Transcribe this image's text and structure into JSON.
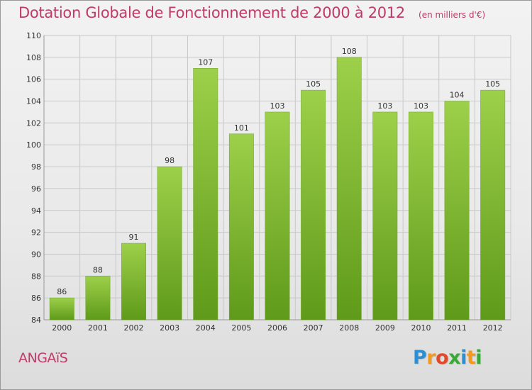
{
  "title": "Dotation Globale de Fonctionnement de 2000 à 2012",
  "subtitle": "(en milliers d'€)",
  "commune": "ANGAïS",
  "logo": {
    "letters": [
      {
        "ch": "P",
        "color": "#2b8fd6"
      },
      {
        "ch": "r",
        "color": "#f39a1e"
      },
      {
        "ch": "o",
        "color": "#e04a2a"
      },
      {
        "ch": "x",
        "color": "#39a935"
      },
      {
        "ch": "i",
        "color": "#2b8fd6"
      },
      {
        "ch": "t",
        "color": "#f39a1e"
      },
      {
        "ch": "i",
        "color": "#39a935"
      }
    ]
  },
  "colors": {
    "bar_top": "#9dd04a",
    "bar_bottom": "#5f9a1a",
    "bar_edge": "#6fa52a",
    "grid": "#c8c8c8",
    "axis_text": "#333333",
    "title": "#c03a6a"
  },
  "chart_data": {
    "type": "bar",
    "categories": [
      "2000",
      "2001",
      "2002",
      "2003",
      "2004",
      "2005",
      "2006",
      "2007",
      "2008",
      "2009",
      "2010",
      "2011",
      "2012"
    ],
    "values": [
      86,
      88,
      91,
      98,
      107,
      101,
      103,
      105,
      108,
      103,
      103,
      104,
      105
    ],
    "ylim": [
      84,
      110
    ],
    "yticks": [
      84,
      86,
      88,
      90,
      92,
      94,
      96,
      98,
      100,
      102,
      104,
      106,
      108,
      110
    ],
    "grid": true,
    "data_labels": true
  }
}
